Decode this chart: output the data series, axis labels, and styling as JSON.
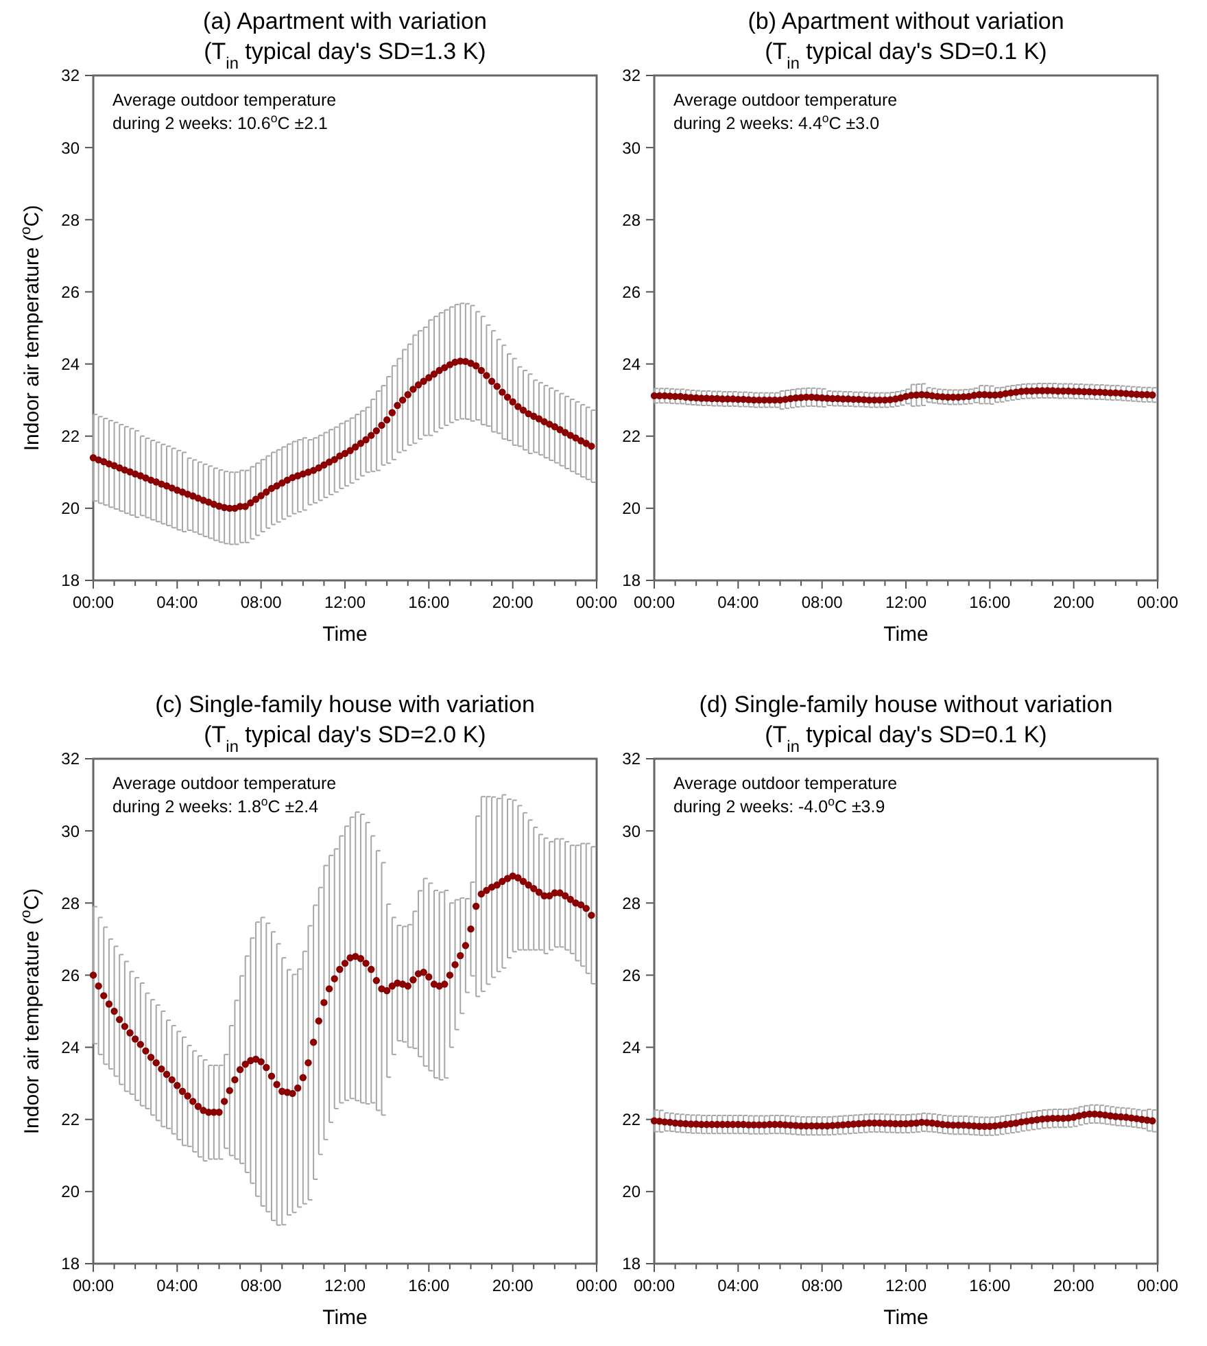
{
  "chart_data": [
    {
      "type": "scatter",
      "title": "(a) Apartment with variation",
      "subtitle": "(T$_{in}$ typical day's SD=1.3 K)",
      "xlabel": "Time",
      "ylabel": "Indoor air temperature ($^{o}$C)",
      "annotations": [
        "Average outdoor temperature",
        "during 2 weeks: 10.6$^{o}$C ±2.1"
      ],
      "marker": "circle",
      "color": "#8b0000",
      "xlim": [
        0,
        24
      ],
      "ylim": [
        18,
        32
      ],
      "xticks": [
        {
          "value": 0,
          "label": "00:00"
        },
        {
          "value": 1,
          "label": null
        },
        {
          "value": 2,
          "label": null
        },
        {
          "value": 3,
          "label": null
        },
        {
          "value": 4,
          "label": "04:00"
        },
        {
          "value": 5,
          "label": null
        },
        {
          "value": 6,
          "label": null
        },
        {
          "value": 7,
          "label": null
        },
        {
          "value": 8,
          "label": "08:00"
        },
        {
          "value": 9,
          "label": null
        },
        {
          "value": 10,
          "label": null
        },
        {
          "value": 11,
          "label": null
        },
        {
          "value": 12,
          "label": "12:00"
        },
        {
          "value": 13,
          "label": null
        },
        {
          "value": 14,
          "label": null
        },
        {
          "value": 15,
          "label": null
        },
        {
          "value": 16,
          "label": "16:00"
        },
        {
          "value": 17,
          "label": null
        },
        {
          "value": 18,
          "label": null
        },
        {
          "value": 19,
          "label": null
        },
        {
          "value": 20,
          "label": "20:00"
        },
        {
          "value": 21,
          "label": null
        },
        {
          "value": 22,
          "label": null
        },
        {
          "value": 23,
          "label": null
        },
        {
          "value": 24,
          "label": "00:00"
        }
      ],
      "yticks": [
        18,
        20,
        22,
        24,
        26,
        28,
        30,
        32
      ],
      "x": [
        0,
        0.25,
        0.5,
        0.75,
        1,
        1.25,
        1.5,
        1.75,
        2,
        2.25,
        2.5,
        2.75,
        3,
        3.25,
        3.5,
        3.75,
        4,
        4.25,
        4.5,
        4.75,
        5,
        5.25,
        5.5,
        5.75,
        6,
        6.25,
        6.5,
        6.75,
        7,
        7.25,
        7.5,
        7.75,
        8,
        8.25,
        8.5,
        8.75,
        9,
        9.25,
        9.5,
        9.75,
        10,
        10.25,
        10.5,
        10.75,
        11,
        11.25,
        11.5,
        11.75,
        12,
        12.25,
        12.5,
        12.75,
        13,
        13.25,
        13.5,
        13.75,
        14,
        14.25,
        14.5,
        14.75,
        15,
        15.25,
        15.5,
        15.75,
        16,
        16.25,
        16.5,
        16.75,
        17,
        17.25,
        17.5,
        17.75,
        18,
        18.25,
        18.5,
        18.75,
        19,
        19.25,
        19.5,
        19.75,
        20,
        20.25,
        20.5,
        20.75,
        21,
        21.25,
        21.5,
        21.75,
        22,
        22.25,
        22.5,
        22.75,
        23,
        23.25,
        23.5,
        23.75
      ],
      "values": [
        21.4,
        21.34,
        21.29,
        21.23,
        21.18,
        21.12,
        21.06,
        21.01,
        20.95,
        20.9,
        20.84,
        20.78,
        20.73,
        20.67,
        20.62,
        20.56,
        20.5,
        20.45,
        20.39,
        20.34,
        20.28,
        20.22,
        20.17,
        20.11,
        20.06,
        20.02,
        20.0,
        20.0,
        20.05,
        20.05,
        20.15,
        20.25,
        20.35,
        20.45,
        20.55,
        20.62,
        20.7,
        20.78,
        20.85,
        20.9,
        20.95,
        21.0,
        21.05,
        21.12,
        21.2,
        21.28,
        21.35,
        21.45,
        21.52,
        21.6,
        21.7,
        21.8,
        21.9,
        22.02,
        22.15,
        22.3,
        22.45,
        22.65,
        22.85,
        23.0,
        23.15,
        23.3,
        23.42,
        23.52,
        23.62,
        23.72,
        23.82,
        23.9,
        23.98,
        24.05,
        24.08,
        24.07,
        24.02,
        23.95,
        23.82,
        23.68,
        23.52,
        23.38,
        23.22,
        23.08,
        22.95,
        22.82,
        22.72,
        22.62,
        22.55,
        22.48,
        22.4,
        22.33,
        22.26,
        22.18,
        22.1,
        22.02,
        21.95,
        21.87,
        21.8,
        21.72
      ],
      "errors": [
        1.2,
        1.2,
        1.2,
        1.2,
        1.2,
        1.2,
        1.2,
        1.2,
        1.2,
        1.1,
        1.1,
        1.1,
        1.1,
        1.1,
        1.1,
        1.1,
        1.1,
        1.1,
        1.0,
        1.0,
        1.0,
        1.0,
        1.0,
        1.0,
        1.0,
        1.0,
        1.0,
        1.0,
        1.0,
        1.0,
        1.0,
        1.0,
        1.0,
        1.0,
        1.0,
        1.0,
        1.0,
        1.0,
        1.0,
        1.0,
        1.0,
        0.9,
        0.9,
        0.9,
        0.9,
        0.9,
        0.9,
        0.9,
        0.9,
        0.9,
        0.9,
        0.9,
        0.9,
        1.0,
        1.1,
        1.1,
        1.2,
        1.3,
        1.3,
        1.4,
        1.4,
        1.5,
        1.5,
        1.5,
        1.6,
        1.6,
        1.6,
        1.6,
        1.6,
        1.6,
        1.6,
        1.6,
        1.6,
        1.5,
        1.5,
        1.4,
        1.4,
        1.3,
        1.3,
        1.2,
        1.2,
        1.1,
        1.1,
        1.1,
        1.0,
        1.0,
        1.0,
        1.0,
        1.0,
        1.0,
        1.0,
        1.0,
        1.0,
        1.0,
        1.0,
        1.0
      ]
    },
    {
      "type": "scatter",
      "title": "(b) Apartment without variation",
      "subtitle": "(T$_{in}$ typical day's SD=0.1 K)",
      "xlabel": "Time",
      "annotations": [
        "Average outdoor temperature",
        "during 2 weeks: 4.4$^{o}$C ±3.0"
      ],
      "marker": "circle",
      "color": "#8b0000",
      "xlim": [
        0,
        24
      ],
      "ylim": [
        18,
        32
      ],
      "xticks": [
        {
          "value": 0,
          "label": "00:00"
        },
        {
          "value": 1,
          "label": null
        },
        {
          "value": 2,
          "label": null
        },
        {
          "value": 3,
          "label": null
        },
        {
          "value": 4,
          "label": "04:00"
        },
        {
          "value": 5,
          "label": null
        },
        {
          "value": 6,
          "label": null
        },
        {
          "value": 7,
          "label": null
        },
        {
          "value": 8,
          "label": "08:00"
        },
        {
          "value": 9,
          "label": null
        },
        {
          "value": 10,
          "label": null
        },
        {
          "value": 11,
          "label": null
        },
        {
          "value": 12,
          "label": "12:00"
        },
        {
          "value": 13,
          "label": null
        },
        {
          "value": 14,
          "label": null
        },
        {
          "value": 15,
          "label": null
        },
        {
          "value": 16,
          "label": "16:00"
        },
        {
          "value": 17,
          "label": null
        },
        {
          "value": 18,
          "label": null
        },
        {
          "value": 19,
          "label": null
        },
        {
          "value": 20,
          "label": "20:00"
        },
        {
          "value": 21,
          "label": null
        },
        {
          "value": 22,
          "label": null
        },
        {
          "value": 23,
          "label": null
        },
        {
          "value": 24,
          "label": "00:00"
        }
      ],
      "yticks": [
        18,
        20,
        22,
        24,
        26,
        28,
        30,
        32
      ],
      "x": [
        0,
        0.25,
        0.5,
        0.75,
        1,
        1.25,
        1.5,
        1.75,
        2,
        2.25,
        2.5,
        2.75,
        3,
        3.25,
        3.5,
        3.75,
        4,
        4.25,
        4.5,
        4.75,
        5,
        5.25,
        5.5,
        5.75,
        6,
        6.25,
        6.5,
        6.75,
        7,
        7.25,
        7.5,
        7.75,
        8,
        8.25,
        8.5,
        8.75,
        9,
        9.25,
        9.5,
        9.75,
        10,
        10.25,
        10.5,
        10.75,
        11,
        11.25,
        11.5,
        11.75,
        12,
        12.25,
        12.5,
        12.75,
        13,
        13.25,
        13.5,
        13.75,
        14,
        14.25,
        14.5,
        14.75,
        15,
        15.25,
        15.5,
        15.75,
        16,
        16.25,
        16.5,
        16.75,
        17,
        17.25,
        17.5,
        17.75,
        18,
        18.25,
        18.5,
        18.75,
        19,
        19.25,
        19.5,
        19.75,
        20,
        20.25,
        20.5,
        20.75,
        21,
        21.25,
        21.5,
        21.75,
        22,
        22.25,
        22.5,
        22.75,
        23,
        23.25,
        23.5,
        23.75
      ],
      "values": [
        23.12,
        23.12,
        23.12,
        23.11,
        23.1,
        23.1,
        23.08,
        23.07,
        23.06,
        23.05,
        23.05,
        23.04,
        23.04,
        23.03,
        23.03,
        23.03,
        23.02,
        23.02,
        23.01,
        23.0,
        23.0,
        23.0,
        23.0,
        23.0,
        23.0,
        23.02,
        23.04,
        23.06,
        23.07,
        23.08,
        23.08,
        23.07,
        23.06,
        23.05,
        23.04,
        23.04,
        23.03,
        23.03,
        23.02,
        23.02,
        23.01,
        23.0,
        23.0,
        23.0,
        23.0,
        23.01,
        23.03,
        23.06,
        23.1,
        23.13,
        23.14,
        23.15,
        23.14,
        23.12,
        23.1,
        23.09,
        23.08,
        23.08,
        23.08,
        23.09,
        23.1,
        23.13,
        23.15,
        23.15,
        23.14,
        23.14,
        23.15,
        23.18,
        23.2,
        23.22,
        23.24,
        23.25,
        23.25,
        23.26,
        23.26,
        23.26,
        23.26,
        23.25,
        23.25,
        23.25,
        23.24,
        23.24,
        23.23,
        23.23,
        23.22,
        23.22,
        23.21,
        23.2,
        23.2,
        23.19,
        23.18,
        23.17,
        23.16,
        23.15,
        23.15,
        23.14
      ],
      "errors": [
        0.2,
        0.2,
        0.2,
        0.2,
        0.2,
        0.2,
        0.2,
        0.2,
        0.2,
        0.2,
        0.2,
        0.2,
        0.2,
        0.2,
        0.2,
        0.2,
        0.2,
        0.2,
        0.2,
        0.2,
        0.2,
        0.2,
        0.2,
        0.2,
        0.25,
        0.25,
        0.25,
        0.25,
        0.25,
        0.25,
        0.25,
        0.25,
        0.25,
        0.2,
        0.2,
        0.2,
        0.2,
        0.2,
        0.2,
        0.2,
        0.2,
        0.2,
        0.2,
        0.2,
        0.2,
        0.2,
        0.2,
        0.2,
        0.2,
        0.3,
        0.3,
        0.3,
        0.2,
        0.2,
        0.2,
        0.2,
        0.2,
        0.2,
        0.2,
        0.2,
        0.2,
        0.2,
        0.25,
        0.25,
        0.25,
        0.2,
        0.2,
        0.2,
        0.2,
        0.2,
        0.2,
        0.2,
        0.2,
        0.2,
        0.2,
        0.2,
        0.2,
        0.2,
        0.2,
        0.2,
        0.2,
        0.2,
        0.2,
        0.2,
        0.2,
        0.2,
        0.2,
        0.2,
        0.2,
        0.2,
        0.2,
        0.2,
        0.2,
        0.2,
        0.2,
        0.2
      ]
    },
    {
      "type": "scatter",
      "title": "(c) Single-family house with variation",
      "subtitle": "(T$_{in}$ typical day's SD=2.0 K)",
      "xlabel": "Time",
      "ylabel": "Indoor air temperature ($^{o}$C)",
      "annotations": [
        "Average outdoor temperature",
        "during 2 weeks: 1.8$^{o}$C ±2.4"
      ],
      "marker": "circle",
      "color": "#8b0000",
      "xlim": [
        0,
        24
      ],
      "ylim": [
        18,
        32
      ],
      "xticks": [
        {
          "value": 0,
          "label": "00:00"
        },
        {
          "value": 1,
          "label": null
        },
        {
          "value": 2,
          "label": null
        },
        {
          "value": 3,
          "label": null
        },
        {
          "value": 4,
          "label": "04:00"
        },
        {
          "value": 5,
          "label": null
        },
        {
          "value": 6,
          "label": null
        },
        {
          "value": 7,
          "label": null
        },
        {
          "value": 8,
          "label": "08:00"
        },
        {
          "value": 9,
          "label": null
        },
        {
          "value": 10,
          "label": null
        },
        {
          "value": 11,
          "label": null
        },
        {
          "value": 12,
          "label": "12:00"
        },
        {
          "value": 13,
          "label": null
        },
        {
          "value": 14,
          "label": null
        },
        {
          "value": 15,
          "label": null
        },
        {
          "value": 16,
          "label": "16:00"
        },
        {
          "value": 17,
          "label": null
        },
        {
          "value": 18,
          "label": null
        },
        {
          "value": 19,
          "label": null
        },
        {
          "value": 20,
          "label": "20:00"
        },
        {
          "value": 21,
          "label": null
        },
        {
          "value": 22,
          "label": null
        },
        {
          "value": 23,
          "label": null
        },
        {
          "value": 24,
          "label": "00:00"
        }
      ],
      "yticks": [
        18,
        20,
        22,
        24,
        26,
        28,
        30,
        32
      ],
      "x": [
        0,
        0.25,
        0.5,
        0.75,
        1,
        1.25,
        1.5,
        1.75,
        2,
        2.25,
        2.5,
        2.75,
        3,
        3.25,
        3.5,
        3.75,
        4,
        4.25,
        4.5,
        4.75,
        5,
        5.25,
        5.5,
        5.75,
        6,
        6.25,
        6.5,
        6.75,
        7,
        7.25,
        7.5,
        7.75,
        8,
        8.25,
        8.5,
        8.75,
        9,
        9.25,
        9.5,
        9.75,
        10,
        10.25,
        10.5,
        10.75,
        11,
        11.25,
        11.5,
        11.75,
        12,
        12.25,
        12.5,
        12.75,
        13,
        13.25,
        13.5,
        13.75,
        14,
        14.25,
        14.5,
        14.75,
        15,
        15.25,
        15.5,
        15.75,
        16,
        16.25,
        16.5,
        16.75,
        17,
        17.25,
        17.5,
        17.75,
        18,
        18.25,
        18.5,
        18.75,
        19,
        19.25,
        19.5,
        19.75,
        20,
        20.25,
        20.5,
        20.75,
        21,
        21.25,
        21.5,
        21.75,
        22,
        22.25,
        22.5,
        22.75,
        23,
        23.25,
        23.5,
        23.75
      ],
      "values": [
        26.0,
        25.7,
        25.43,
        25.2,
        25.0,
        24.77,
        24.58,
        24.4,
        24.23,
        24.08,
        23.9,
        23.72,
        23.57,
        23.4,
        23.25,
        23.1,
        22.94,
        22.78,
        22.65,
        22.5,
        22.36,
        22.25,
        22.2,
        22.2,
        22.2,
        22.5,
        22.8,
        23.1,
        23.38,
        23.53,
        23.63,
        23.67,
        23.6,
        23.44,
        23.2,
        22.97,
        22.78,
        22.75,
        22.72,
        22.87,
        23.16,
        23.57,
        24.14,
        24.73,
        25.24,
        25.62,
        25.9,
        26.16,
        26.33,
        26.48,
        26.52,
        26.46,
        26.33,
        26.16,
        25.85,
        25.62,
        25.57,
        25.7,
        25.78,
        25.75,
        25.7,
        25.87,
        26.04,
        26.08,
        25.95,
        25.75,
        25.7,
        25.75,
        26.0,
        26.29,
        26.54,
        26.82,
        27.28,
        27.91,
        28.25,
        28.35,
        28.44,
        28.5,
        28.6,
        28.68,
        28.75,
        28.7,
        28.6,
        28.5,
        28.4,
        28.3,
        28.2,
        28.2,
        28.28,
        28.28,
        28.2,
        28.1,
        28.0,
        27.95,
        27.85,
        27.66
      ],
      "errors": [
        1.9,
        1.9,
        1.9,
        1.8,
        1.8,
        1.8,
        1.8,
        1.7,
        1.7,
        1.7,
        1.6,
        1.6,
        1.6,
        1.6,
        1.5,
        1.5,
        1.5,
        1.5,
        1.4,
        1.4,
        1.4,
        1.4,
        1.3,
        1.3,
        1.3,
        1.3,
        1.8,
        2.2,
        2.6,
        3.0,
        3.4,
        3.8,
        4.0,
        4.0,
        4.0,
        3.9,
        3.7,
        3.4,
        3.3,
        3.3,
        3.5,
        3.8,
        3.8,
        3.7,
        3.8,
        3.7,
        3.6,
        3.7,
        3.8,
        3.9,
        4.0,
        4.0,
        3.9,
        3.7,
        3.6,
        3.5,
        2.4,
        1.9,
        1.6,
        1.6,
        1.7,
        1.9,
        2.3,
        2.6,
        2.6,
        2.6,
        2.6,
        2.6,
        2.0,
        1.8,
        1.6,
        1.3,
        1.3,
        2.5,
        2.7,
        2.6,
        2.5,
        2.4,
        2.4,
        2.2,
        2.1,
        2.0,
        1.9,
        1.8,
        1.7,
        1.6,
        1.6,
        1.5,
        1.5,
        1.5,
        1.5,
        1.5,
        1.6,
        1.7,
        1.8,
        1.9
      ]
    },
    {
      "type": "scatter",
      "title": "(d) Single-family house without variation",
      "subtitle": "(T$_{in}$ typical day's SD=0.1 K)",
      "xlabel": "Time",
      "annotations": [
        "Average outdoor temperature",
        "during 2 weeks: -4.0$^{o}$C ±3.9"
      ],
      "marker": "circle",
      "color": "#8b0000",
      "xlim": [
        0,
        24
      ],
      "ylim": [
        18,
        32
      ],
      "xticks": [
        {
          "value": 0,
          "label": "00:00"
        },
        {
          "value": 1,
          "label": null
        },
        {
          "value": 2,
          "label": null
        },
        {
          "value": 3,
          "label": null
        },
        {
          "value": 4,
          "label": "04:00"
        },
        {
          "value": 5,
          "label": null
        },
        {
          "value": 6,
          "label": null
        },
        {
          "value": 7,
          "label": null
        },
        {
          "value": 8,
          "label": "08:00"
        },
        {
          "value": 9,
          "label": null
        },
        {
          "value": 10,
          "label": null
        },
        {
          "value": 11,
          "label": null
        },
        {
          "value": 12,
          "label": "12:00"
        },
        {
          "value": 13,
          "label": null
        },
        {
          "value": 14,
          "label": null
        },
        {
          "value": 15,
          "label": null
        },
        {
          "value": 16,
          "label": "16:00"
        },
        {
          "value": 17,
          "label": null
        },
        {
          "value": 18,
          "label": null
        },
        {
          "value": 19,
          "label": null
        },
        {
          "value": 20,
          "label": "20:00"
        },
        {
          "value": 21,
          "label": null
        },
        {
          "value": 22,
          "label": null
        },
        {
          "value": 23,
          "label": null
        },
        {
          "value": 24,
          "label": "00:00"
        }
      ],
      "yticks": [
        18,
        20,
        22,
        24,
        26,
        28,
        30,
        32
      ],
      "x": [
        0,
        0.25,
        0.5,
        0.75,
        1,
        1.25,
        1.5,
        1.75,
        2,
        2.25,
        2.5,
        2.75,
        3,
        3.25,
        3.5,
        3.75,
        4,
        4.25,
        4.5,
        4.75,
        5,
        5.25,
        5.5,
        5.75,
        6,
        6.25,
        6.5,
        6.75,
        7,
        7.25,
        7.5,
        7.75,
        8,
        8.25,
        8.5,
        8.75,
        9,
        9.25,
        9.5,
        9.75,
        10,
        10.25,
        10.5,
        10.75,
        11,
        11.25,
        11.5,
        11.75,
        12,
        12.25,
        12.5,
        12.75,
        13,
        13.25,
        13.5,
        13.75,
        14,
        14.25,
        14.5,
        14.75,
        15,
        15.25,
        15.5,
        15.75,
        16,
        16.25,
        16.5,
        16.75,
        17,
        17.25,
        17.5,
        17.75,
        18,
        18.25,
        18.5,
        18.75,
        19,
        19.25,
        19.5,
        19.75,
        20,
        20.25,
        20.5,
        20.75,
        21,
        21.25,
        21.5,
        21.75,
        22,
        22.25,
        22.5,
        22.75,
        23,
        23.25,
        23.5,
        23.75
      ],
      "values": [
        21.96,
        21.95,
        21.93,
        21.92,
        21.9,
        21.89,
        21.88,
        21.87,
        21.87,
        21.86,
        21.86,
        21.86,
        21.86,
        21.86,
        21.86,
        21.86,
        21.86,
        21.86,
        21.85,
        21.85,
        21.85,
        21.85,
        21.86,
        21.86,
        21.86,
        21.85,
        21.84,
        21.83,
        21.82,
        21.82,
        21.82,
        21.82,
        21.82,
        21.82,
        21.83,
        21.84,
        21.85,
        21.86,
        21.87,
        21.88,
        21.89,
        21.9,
        21.9,
        21.9,
        21.89,
        21.89,
        21.88,
        21.88,
        21.88,
        21.89,
        21.9,
        21.92,
        21.91,
        21.9,
        21.88,
        21.86,
        21.85,
        21.84,
        21.84,
        21.84,
        21.83,
        21.82,
        21.81,
        21.81,
        21.81,
        21.82,
        21.84,
        21.86,
        21.88,
        21.9,
        21.93,
        21.95,
        21.97,
        21.99,
        22.01,
        22.02,
        22.03,
        22.03,
        22.03,
        22.04,
        22.06,
        22.1,
        22.13,
        22.15,
        22.15,
        22.14,
        22.12,
        22.1,
        22.08,
        22.07,
        22.06,
        22.04,
        22.02,
        22.0,
        21.98,
        21.96
      ],
      "errors": [
        0.3,
        0.3,
        0.25,
        0.25,
        0.25,
        0.25,
        0.25,
        0.25,
        0.25,
        0.25,
        0.25,
        0.25,
        0.25,
        0.25,
        0.25,
        0.25,
        0.25,
        0.25,
        0.25,
        0.25,
        0.25,
        0.25,
        0.25,
        0.25,
        0.25,
        0.25,
        0.25,
        0.25,
        0.25,
        0.25,
        0.25,
        0.25,
        0.25,
        0.25,
        0.25,
        0.25,
        0.25,
        0.25,
        0.25,
        0.25,
        0.25,
        0.25,
        0.25,
        0.25,
        0.25,
        0.25,
        0.25,
        0.25,
        0.25,
        0.25,
        0.25,
        0.25,
        0.25,
        0.25,
        0.25,
        0.25,
        0.25,
        0.25,
        0.25,
        0.25,
        0.25,
        0.25,
        0.25,
        0.25,
        0.25,
        0.25,
        0.25,
        0.25,
        0.25,
        0.25,
        0.25,
        0.25,
        0.25,
        0.25,
        0.25,
        0.25,
        0.25,
        0.25,
        0.25,
        0.25,
        0.25,
        0.25,
        0.25,
        0.25,
        0.25,
        0.25,
        0.25,
        0.25,
        0.25,
        0.25,
        0.25,
        0.25,
        0.25,
        0.25,
        0.3,
        0.3
      ]
    }
  ]
}
